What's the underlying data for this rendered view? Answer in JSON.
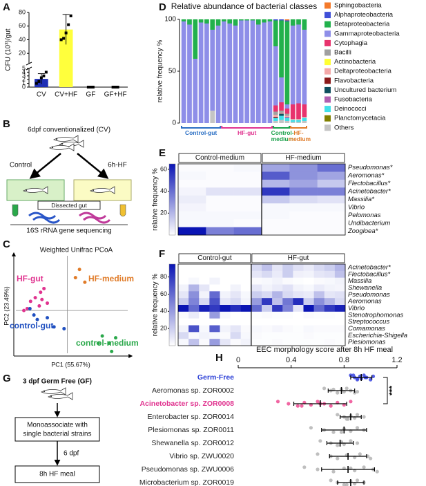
{
  "panel_labels": [
    "A",
    "B",
    "C",
    "D",
    "E",
    "F",
    "G",
    "H"
  ],
  "diagram_b": {
    "title": "6dpf conventionalized (CV)",
    "left_branch": "Control",
    "right_branch": "6h-HF",
    "step": "Dissected gut",
    "result": "16S rRNA gene sequencing"
  },
  "diagram_g": {
    "title": "3 dpf Germ Free (GF)",
    "step1": [
      "Monoassociate with",
      "single bacterial strains"
    ],
    "arrow_label": "6 dpf",
    "step2": "8h HF meal"
  },
  "chart_data": [
    {
      "type": "bar",
      "ylabel": "CFU (10³)/gut",
      "categories": [
        "CV",
        "CV+HF",
        "GF",
        "GF+HF"
      ],
      "values": [
        2.2,
        55,
        0,
        0
      ],
      "errors": [
        1.4,
        22,
        0,
        0
      ],
      "points": [
        [
          1,
          1.5,
          2.5,
          3,
          4
        ],
        [
          40,
          42,
          50,
          62,
          75
        ],
        [
          0,
          0,
          0
        ],
        [
          0,
          0,
          0
        ]
      ],
      "colors": [
        "#1f2fb5",
        "#ffff3c",
        "#1f2fb5",
        "#1f2fb5"
      ],
      "ylim": [
        0,
        80
      ],
      "ybreak": 5,
      "yticks": [
        0,
        1,
        2,
        3,
        4,
        5,
        20,
        40,
        60,
        80
      ]
    },
    {
      "type": "scatter",
      "title": "Weighted Unifrac PCoA",
      "xlabel": "PC1 (55.67%)",
      "ylabel": "PC2 (23.49%)",
      "xlim": [
        -0.8,
        0.9
      ],
      "ylim": [
        -0.5,
        0.6
      ],
      "zero_lines": true,
      "series": [
        {
          "name": "HF-gut",
          "color": "#e0338f",
          "x": [
            -0.55,
            -0.48,
            -0.4,
            -0.35,
            -0.42,
            -0.6,
            -0.3,
            -0.65,
            -0.38
          ],
          "y": [
            0.1,
            0.14,
            0.2,
            0.24,
            0.05,
            0.02,
            0.08,
            0.0,
            0.12
          ]
        },
        {
          "name": "HF-medium",
          "color": "#e07b28",
          "x": [
            0.18,
            0.12,
            0.26
          ],
          "y": [
            0.45,
            0.36,
            0.31
          ]
        },
        {
          "name": "control-gut",
          "color": "#1f4fc0",
          "x": [
            -0.5,
            -0.45,
            -0.3,
            -0.2,
            -0.05,
            -0.56
          ],
          "y": [
            -0.05,
            -0.1,
            -0.08,
            -0.18,
            -0.2,
            0.02
          ]
        },
        {
          "name": "control-medium",
          "color": "#2aa84a",
          "x": [
            0.52,
            0.62,
            0.66,
            0.46,
            0.72
          ],
          "y": [
            -0.28,
            -0.36,
            -0.45,
            -0.36,
            -0.3
          ]
        }
      ]
    },
    {
      "type": "stacked_bar",
      "title": "Relative abundance of bacterial classes",
      "ylabel": "relative frequency %",
      "ylim": [
        0,
        100
      ],
      "yticks": [
        0,
        50,
        100
      ],
      "categories": [
        null,
        null,
        null,
        null,
        null,
        null,
        null,
        null,
        null,
        null,
        null,
        null,
        null,
        null,
        null,
        null,
        null,
        null,
        null,
        null,
        null,
        null
      ],
      "groups": [
        {
          "name": "Control-gut",
          "color": "#2a6fc4",
          "size": 7
        },
        {
          "name": "HF-gut",
          "color": "#e0338f",
          "size": 9
        },
        {
          "name": "Control-medium",
          "color": "#1aa04a",
          "size": 3
        },
        {
          "name": "HF-medium",
          "color": "#e07b28",
          "size": 3
        }
      ],
      "series": [
        {
          "name": "Sphingobacteria",
          "color": "#f47a2a",
          "values": [
            0,
            0,
            0,
            0,
            0,
            0,
            0,
            0,
            0,
            0,
            0,
            0,
            0,
            0,
            0,
            0,
            0,
            0,
            1,
            0,
            0,
            0
          ]
        },
        {
          "name": "Alphaproteobacteria",
          "color": "#3f4fd8",
          "values": [
            0,
            0,
            0,
            0,
            0,
            0,
            0,
            0,
            0,
            0,
            0,
            0,
            0,
            0,
            0,
            0,
            1,
            1,
            1,
            0,
            0,
            0
          ]
        },
        {
          "name": "Betaproteobacteria",
          "color": "#22b14c",
          "values": [
            2,
            5,
            38,
            3,
            4,
            10,
            6,
            2,
            4,
            6,
            1,
            1,
            1,
            5,
            3,
            2,
            25,
            55,
            80,
            6,
            5,
            10
          ]
        },
        {
          "name": "Gammaproteobacteria",
          "color": "#8e8ee8",
          "values": [
            98,
            95,
            62,
            97,
            96,
            78,
            94,
            98,
            96,
            94,
            99,
            99,
            99,
            95,
            97,
            98,
            57,
            24,
            4,
            76,
            76,
            72
          ]
        },
        {
          "name": "Cytophagia",
          "color": "#e8336d",
          "values": [
            0,
            0,
            0,
            0,
            0,
            0,
            0,
            0,
            0,
            0,
            0,
            0,
            0,
            0,
            0,
            0,
            6,
            8,
            5,
            14,
            15,
            12
          ]
        },
        {
          "name": "Bacilli",
          "color": "#a0a0a0",
          "values": [
            0,
            0,
            0,
            0,
            0,
            0,
            0,
            0,
            0,
            0,
            0,
            0,
            0,
            0,
            0,
            0,
            3,
            2,
            2,
            0,
            0,
            0
          ]
        },
        {
          "name": "Actinobacteria",
          "color": "#ffff33",
          "values": [
            0,
            0,
            0,
            0,
            0,
            0,
            0,
            0,
            0,
            0,
            0,
            0,
            0,
            0,
            0,
            0,
            0,
            0,
            0,
            0,
            0,
            0
          ]
        },
        {
          "name": "Deltaproteobacteria",
          "color": "#f4a8a8",
          "values": [
            0,
            0,
            0,
            0,
            0,
            0,
            0,
            0,
            0,
            0,
            0,
            0,
            0,
            0,
            0,
            0,
            2,
            1,
            1,
            1,
            1,
            1
          ]
        },
        {
          "name": "Flavobacteria",
          "color": "#8b1a1a",
          "values": [
            0,
            0,
            0,
            0,
            0,
            0,
            0,
            0,
            0,
            0,
            0,
            0,
            0,
            0,
            0,
            0,
            1,
            0,
            0,
            0,
            0,
            0
          ]
        },
        {
          "name": "Uncultured bacterium",
          "color": "#0e4f5e",
          "values": [
            0,
            0,
            0,
            0,
            0,
            0,
            0,
            0,
            0,
            0,
            0,
            0,
            0,
            0,
            0,
            0,
            0,
            2,
            0,
            0,
            0,
            0
          ]
        },
        {
          "name": "Fusobacteria",
          "color": "#b05fb0",
          "values": [
            0,
            0,
            0,
            0,
            0,
            0,
            0,
            0,
            0,
            0,
            0,
            0,
            0,
            0,
            0,
            0,
            0,
            0,
            1,
            0,
            0,
            0
          ]
        },
        {
          "name": "Deinococci",
          "color": "#40e0e8",
          "values": [
            0,
            0,
            0,
            0,
            0,
            0,
            0,
            0,
            0,
            0,
            0,
            0,
            0,
            0,
            0,
            0,
            3,
            4,
            3,
            2,
            2,
            3
          ]
        },
        {
          "name": "Planctomycetacia",
          "color": "#808000",
          "values": [
            0,
            0,
            0,
            0,
            0,
            0,
            0,
            0,
            0,
            0,
            0,
            0,
            0,
            0,
            0,
            0,
            0,
            0,
            0,
            0,
            0,
            0
          ]
        },
        {
          "name": "Others",
          "color": "#c4c4c4",
          "values": [
            0,
            0,
            0,
            0,
            0,
            12,
            0,
            0,
            0,
            0,
            0,
            0,
            0,
            0,
            0,
            0,
            2,
            3,
            2,
            1,
            1,
            2
          ]
        }
      ]
    },
    {
      "type": "heatmap",
      "ylabel": "relative frequency %",
      "clim": [
        0,
        65
      ],
      "cticks": [
        20,
        40,
        60
      ],
      "groups": [
        {
          "name": "Control-medium",
          "size": 3
        },
        {
          "name": "HF-medium",
          "size": 3
        }
      ],
      "rows": [
        "Pseudomonas*",
        "Aeromonas*",
        "Flectobacillus*",
        "Acinetobacter*",
        "Massilia*",
        "Vibrio",
        "Pelomonas",
        "Undibacterium",
        "Zoogloea*"
      ],
      "values": [
        [
          1,
          1,
          2,
          25,
          30,
          40
        ],
        [
          2,
          1,
          1,
          45,
          30,
          25
        ],
        [
          1,
          1,
          1,
          20,
          25,
          15
        ],
        [
          3,
          8,
          8,
          55,
          35,
          35
        ],
        [
          5,
          1,
          1,
          15,
          10,
          8
        ],
        [
          3,
          1,
          1,
          2,
          2,
          2
        ],
        [
          2,
          2,
          2,
          2,
          1,
          1
        ],
        [
          2,
          2,
          1,
          1,
          1,
          1
        ],
        [
          65,
          35,
          40,
          1,
          1,
          1
        ]
      ]
    },
    {
      "type": "heatmap",
      "ylabel": "relative frequency %",
      "clim": [
        0,
        95
      ],
      "cticks": [
        20,
        40,
        60,
        80
      ],
      "groups": [
        {
          "name": "Control-gut",
          "size": 7
        },
        {
          "name": "HF-gut",
          "size": 9
        }
      ],
      "rows": [
        "Acinetobacter*",
        "Flectobacillus*",
        "Massilia",
        "Shewanella",
        "Pseudomonas",
        "Aeromonas",
        "Vibrio",
        "Stenotrophomonas",
        "Streptococcus",
        "Comamonas",
        "Escherichia-Shigella",
        "Plesiomonas"
      ],
      "values": [
        [
          0,
          0,
          0,
          0,
          0,
          0,
          0,
          15,
          25,
          10,
          20,
          12,
          8,
          15,
          20,
          30
        ],
        [
          0,
          0,
          0,
          0,
          0,
          0,
          0,
          10,
          15,
          8,
          20,
          6,
          5,
          10,
          12,
          25
        ],
        [
          0,
          3,
          0,
          5,
          0,
          0,
          0,
          2,
          3,
          5,
          2,
          1,
          0,
          2,
          3,
          5
        ],
        [
          5,
          30,
          10,
          0,
          0,
          5,
          0,
          10,
          5,
          8,
          12,
          5,
          3,
          8,
          5,
          4
        ],
        [
          10,
          45,
          5,
          60,
          5,
          10,
          3,
          20,
          15,
          30,
          15,
          10,
          8,
          25,
          10,
          12
        ],
        [
          20,
          50,
          15,
          70,
          10,
          15,
          5,
          40,
          80,
          25,
          55,
          85,
          20,
          45,
          30,
          15
        ],
        [
          95,
          60,
          90,
          80,
          95,
          85,
          95,
          60,
          20,
          80,
          50,
          10,
          95,
          60,
          80,
          90
        ],
        [
          2,
          8,
          0,
          40,
          3,
          0,
          0,
          1,
          2,
          1,
          1,
          0,
          2,
          1,
          1,
          0
        ],
        [
          0,
          0,
          0,
          0,
          0,
          0,
          0,
          0,
          0,
          0,
          0,
          0,
          0,
          0,
          0,
          0
        ],
        [
          5,
          70,
          3,
          65,
          5,
          10,
          2,
          3,
          2,
          4,
          2,
          1,
          3,
          2,
          2,
          2
        ],
        [
          15,
          2,
          5,
          3,
          2,
          15,
          3,
          2,
          1,
          1,
          1,
          1,
          2,
          1,
          1,
          1
        ],
        [
          3,
          25,
          2,
          40,
          10,
          2,
          5,
          1,
          1,
          2,
          1,
          1,
          1,
          1,
          2,
          1
        ]
      ]
    },
    {
      "type": "dot_plot",
      "title": "EEC morphology score after 8h HF meal",
      "xlim": [
        0,
        1.2
      ],
      "xticks": [
        0,
        0.4,
        0.8,
        1.2
      ],
      "categories": [
        "Germ-Free",
        "Aeromonas sp. ZOR0002",
        "Acinetobacter sp. ZOR0008",
        "Enterobacter sp. ZOR0014",
        "Plesiomonas sp. ZOR0011",
        "Shewanella sp. ZOR0012",
        "Vibrio sp. ZWU0020",
        "Pseudomonas sp. ZWU0006",
        "Microbacterium sp. ZOR0019"
      ],
      "category_colors": [
        "#2b3fd6",
        "#222222",
        "#e0338f",
        "#222222",
        "#222222",
        "#222222",
        "#222222",
        "#222222",
        "#222222"
      ],
      "point_colors": [
        "#3a46e0",
        "#b4b4b4",
        "#ee4a92",
        "#b4b4b4",
        "#b4b4b4",
        "#b4b4b4",
        "#b4b4b4",
        "#b4b4b4",
        "#b4b4b4"
      ],
      "values": [
        0.93,
        0.78,
        0.62,
        0.85,
        0.8,
        0.77,
        0.83,
        0.83,
        0.85
      ],
      "errors": [
        0.08,
        0.1,
        0.2,
        0.08,
        0.17,
        0.1,
        0.14,
        0.2,
        0.1
      ],
      "points": [
        [
          0.85,
          0.88,
          0.9,
          0.92,
          0.93,
          0.95,
          0.97,
          1.0,
          1.02,
          0.9,
          0.87,
          0.96
        ],
        [
          0.65,
          0.7,
          0.75,
          0.78,
          0.8,
          0.82,
          0.85,
          0.88,
          0.72,
          0.9
        ],
        [
          0.3,
          0.38,
          0.45,
          0.5,
          0.55,
          0.6,
          0.65,
          0.7,
          0.75,
          0.8,
          0.85,
          0.62,
          0.48
        ],
        [
          0.75,
          0.8,
          0.83,
          0.85,
          0.88,
          0.9,
          0.95,
          0.82
        ],
        [
          0.55,
          0.65,
          0.72,
          0.8,
          0.85,
          0.9,
          0.95,
          0.78
        ],
        [
          0.62,
          0.7,
          0.75,
          0.78,
          0.8,
          0.85,
          0.9
        ],
        [
          0.6,
          0.7,
          0.75,
          0.82,
          0.88,
          0.92,
          0.98,
          1.0
        ],
        [
          0.5,
          0.6,
          0.72,
          0.8,
          0.88,
          0.95,
          1.02,
          1.05,
          0.85
        ],
        [
          0.7,
          0.75,
          0.8,
          0.85,
          0.88,
          0.9,
          0.95,
          0.82
        ]
      ],
      "significance": {
        "rows": [
          0,
          2
        ],
        "label": "***"
      }
    }
  ]
}
